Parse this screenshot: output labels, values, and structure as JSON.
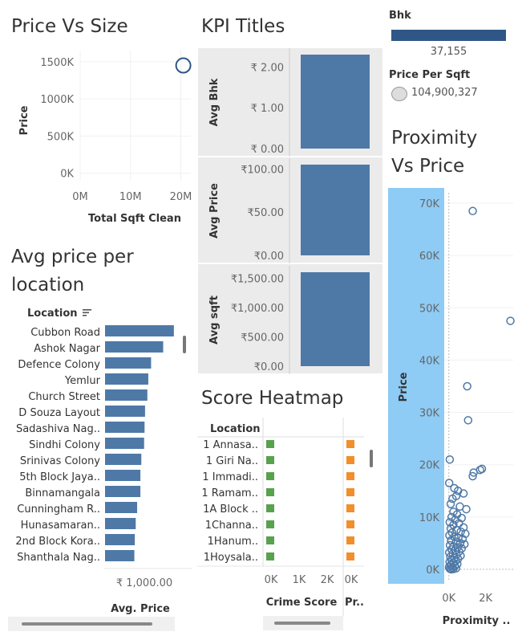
{
  "titles": {
    "price_vs_size": "Price Vs Size",
    "kpi": "KPI Titles",
    "avg_price_location_1": "Avg price per",
    "avg_price_location_2": "location",
    "score_heatmap": "Score Heatmap",
    "proximity_1": "Proximity",
    "proximity_2": "Vs Price"
  },
  "legend": {
    "bhk_label": "Bhk",
    "bhk_value": "37,155",
    "pps_label": "Price Per Sqft",
    "pps_value": "104,900,327",
    "colors": {
      "bar": "#4e79a7",
      "highlight": "#8ecbf5",
      "green": "#59a14f",
      "orange": "#f28e2b",
      "dark": "#2f5687"
    }
  },
  "chart_data": [
    {
      "id": "price_vs_size",
      "type": "scatter",
      "xlabel": "Total Sqft Clean",
      "ylabel": "Price",
      "x_ticks": [
        "0M",
        "10M",
        "20M"
      ],
      "y_ticks": [
        "0K",
        "500K",
        "1000K",
        "1500K"
      ],
      "xlim": [
        0,
        22
      ],
      "ylim": [
        -100,
        1650
      ],
      "points": [
        {
          "x": 20.5,
          "y": 1450
        }
      ]
    },
    {
      "id": "kpi",
      "type": "bar",
      "rows": [
        {
          "label": "Avg Bhk",
          "ticks": [
            "₹ 2.00",
            "₹ 1.00",
            "₹ 0.00"
          ],
          "tick_values": [
            2,
            1,
            0
          ],
          "max": 2.3,
          "value": 2.3
        },
        {
          "label": "Avg Price",
          "ticks": [
            "₹100.00",
            "₹50.00",
            "₹0.00"
          ],
          "tick_values": [
            100,
            50,
            0
          ],
          "max": 105,
          "value": 105
        },
        {
          "label": "Avg sqft",
          "ticks": [
            "₹1,500.00",
            "₹1,000.00",
            "₹500.00",
            "₹0.00"
          ],
          "tick_values": [
            1500,
            1000,
            500,
            0
          ],
          "max": 1600,
          "value": 1600
        }
      ]
    },
    {
      "id": "avg_price_per_location",
      "type": "bar",
      "header": "Location",
      "xlabel": "Avg. Price",
      "x_tick": "₹ 1,000.00",
      "categories": [
        "Cubbon Road",
        "Ashok Nagar",
        "Defence Colony",
        "Yemlur",
        "Church Street",
        "D Souza Layout",
        "Sadashiva Nag..",
        "Sindhi Colony",
        "Srinivas Colony",
        "5th Block Jaya..",
        "Binnamangala",
        "Cunningham R..",
        "Hunasamaran..",
        "2nd Block Kora..",
        "Shanthala Nag.."
      ],
      "values": [
        1480,
        1250,
        990,
        930,
        910,
        860,
        850,
        840,
        780,
        760,
        760,
        690,
        660,
        640,
        630
      ],
      "xlim": [
        0,
        1500
      ]
    },
    {
      "id": "score_heatmap",
      "type": "heatmap",
      "header": "Location",
      "categories": [
        "1 Annasa..",
        "1 Giri Na..",
        "1 Immadi..",
        "1 Ramam..",
        "1A Block ..",
        "1Channa..",
        "1Hanum..",
        "1Hoysala.."
      ],
      "columns": [
        {
          "label": "Crime Score",
          "ticks": [
            "0K",
            "1K",
            "2K"
          ],
          "color": "green"
        },
        {
          "label": "Pr..",
          "ticks": [
            "0K"
          ],
          "color": "orange"
        }
      ]
    },
    {
      "id": "proximity_vs_price",
      "type": "scatter",
      "xlabel": "Proximity ..",
      "ylabel": "Price",
      "x_ticks": [
        "0K",
        "2K"
      ],
      "y_ticks": [
        "0K",
        "10K",
        "20K",
        "30K",
        "40K",
        "50K",
        "60K",
        "70K"
      ],
      "xlim": [
        -250,
        3500
      ],
      "ylim": [
        -2000,
        72000
      ],
      "points": [
        {
          "x": 1300,
          "y": 68500
        },
        {
          "x": 3350,
          "y": 47500
        },
        {
          "x": 1000,
          "y": 35000
        },
        {
          "x": 1050,
          "y": 28500
        },
        {
          "x": 1800,
          "y": 19200
        },
        {
          "x": 1700,
          "y": 19000
        },
        {
          "x": 1350,
          "y": 18500
        },
        {
          "x": 1300,
          "y": 17800
        },
        {
          "x": 50,
          "y": 21000
        },
        {
          "x": 20,
          "y": 16500
        },
        {
          "x": 300,
          "y": 15500
        },
        {
          "x": 500,
          "y": 15000
        },
        {
          "x": 800,
          "y": 14500
        },
        {
          "x": 400,
          "y": 14000
        },
        {
          "x": 200,
          "y": 13500
        },
        {
          "x": 600,
          "y": 12000
        },
        {
          "x": 950,
          "y": 11500
        },
        {
          "x": 100,
          "y": 12500
        },
        {
          "x": 250,
          "y": 11000
        },
        {
          "x": 450,
          "y": 10500
        },
        {
          "x": 150,
          "y": 10000
        },
        {
          "x": 700,
          "y": 9800
        },
        {
          "x": 350,
          "y": 9500
        },
        {
          "x": 50,
          "y": 9000
        },
        {
          "x": 550,
          "y": 8800
        },
        {
          "x": 250,
          "y": 8500
        },
        {
          "x": 800,
          "y": 8000
        },
        {
          "x": 100,
          "y": 7800
        },
        {
          "x": 420,
          "y": 7500
        },
        {
          "x": 650,
          "y": 7200
        },
        {
          "x": 180,
          "y": 7000
        },
        {
          "x": 900,
          "y": 6800
        },
        {
          "x": 30,
          "y": 6500
        },
        {
          "x": 300,
          "y": 6200
        },
        {
          "x": 520,
          "y": 6000
        },
        {
          "x": 750,
          "y": 5800
        },
        {
          "x": 120,
          "y": 5500
        },
        {
          "x": 400,
          "y": 5300
        },
        {
          "x": 620,
          "y": 5000
        },
        {
          "x": 850,
          "y": 4800
        },
        {
          "x": 60,
          "y": 4600
        },
        {
          "x": 250,
          "y": 4400
        },
        {
          "x": 480,
          "y": 4200
        },
        {
          "x": 700,
          "y": 4000
        },
        {
          "x": 150,
          "y": 3800
        },
        {
          "x": 350,
          "y": 3600
        },
        {
          "x": 560,
          "y": 3400
        },
        {
          "x": 20,
          "y": 3200
        },
        {
          "x": 220,
          "y": 3000
        },
        {
          "x": 420,
          "y": 2800
        },
        {
          "x": 640,
          "y": 2600
        },
        {
          "x": 80,
          "y": 2400
        },
        {
          "x": 300,
          "y": 2200
        },
        {
          "x": 500,
          "y": 2000
        },
        {
          "x": 150,
          "y": 1800
        },
        {
          "x": 380,
          "y": 1600
        },
        {
          "x": 40,
          "y": 1400
        },
        {
          "x": 260,
          "y": 1200
        },
        {
          "x": 460,
          "y": 1000
        },
        {
          "x": 100,
          "y": 800
        },
        {
          "x": 320,
          "y": 600
        },
        {
          "x": 10,
          "y": 400
        },
        {
          "x": 200,
          "y": 300
        },
        {
          "x": 400,
          "y": 200
        },
        {
          "x": 60,
          "y": 100
        },
        {
          "x": 250,
          "y": 50
        },
        {
          "x": 130,
          "y": 0
        }
      ]
    }
  ]
}
